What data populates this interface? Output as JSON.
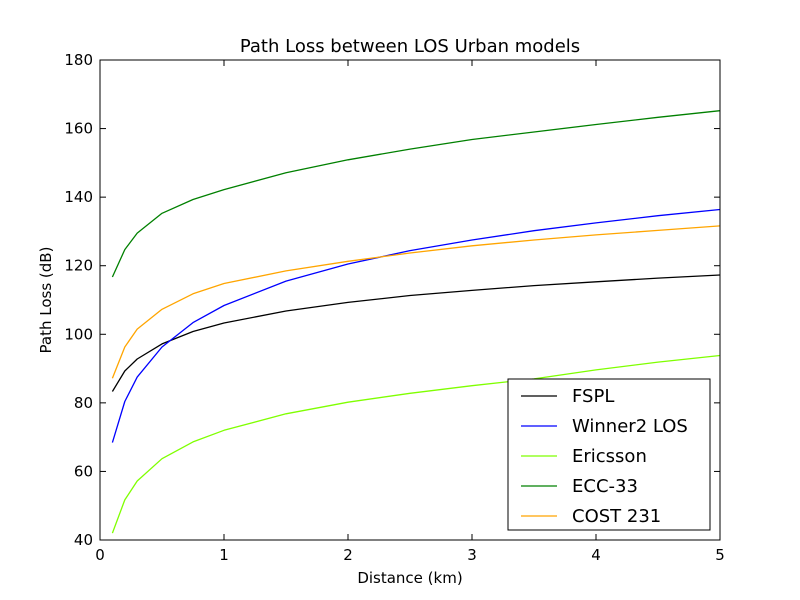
{
  "chart_data": {
    "type": "line",
    "title": "Path Loss between LOS Urban models",
    "xlabel": "Distance (km)",
    "ylabel": "Path Loss (dB)",
    "xlim": [
      0,
      5
    ],
    "ylim": [
      40,
      180
    ],
    "xticks": [
      0,
      1,
      2,
      3,
      4,
      5
    ],
    "yticks": [
      40,
      60,
      80,
      100,
      120,
      140,
      160,
      180
    ],
    "grid": false,
    "legend_position": "lower-right",
    "series": [
      {
        "name": "FSPL",
        "color": "#000000",
        "x": [
          0.1,
          0.2,
          0.3,
          0.5,
          0.75,
          1.0,
          1.5,
          2.0,
          2.5,
          3.0,
          3.5,
          4.0,
          4.5,
          5.0
        ],
        "y": [
          83.3,
          89.3,
          92.8,
          97.2,
          100.8,
          103.3,
          106.8,
          109.3,
          111.3,
          112.8,
          114.2,
          115.3,
          116.4,
          117.3
        ]
      },
      {
        "name": "Winner2 LOS",
        "color": "#0000ff",
        "x": [
          0.1,
          0.2,
          0.3,
          0.5,
          0.75,
          1.0,
          1.5,
          2.0,
          2.5,
          3.0,
          3.5,
          4.0,
          4.5,
          5.0
        ],
        "y": [
          68.4,
          80.4,
          87.5,
          96.3,
          103.4,
          108.4,
          115.5,
          120.5,
          124.4,
          127.5,
          130.2,
          132.5,
          134.6,
          136.4
        ]
      },
      {
        "name": "Ericsson",
        "color": "#7fff00",
        "x": [
          0.1,
          0.2,
          0.3,
          0.5,
          0.75,
          1.0,
          1.5,
          2.0,
          2.5,
          3.0,
          3.5,
          4.0,
          4.5,
          5.0
        ],
        "y": [
          42.0,
          51.7,
          57.2,
          63.7,
          68.6,
          72.0,
          76.8,
          80.2,
          82.8,
          85.0,
          87.0,
          89.6,
          91.9,
          93.8
        ]
      },
      {
        "name": "ECC-33",
        "color": "#008000",
        "x": [
          0.1,
          0.2,
          0.3,
          0.5,
          0.75,
          1.0,
          1.5,
          2.0,
          2.5,
          3.0,
          3.5,
          4.0,
          4.5,
          5.0
        ],
        "y": [
          116.7,
          124.7,
          129.5,
          135.3,
          139.3,
          142.2,
          147.1,
          150.9,
          154.0,
          156.8,
          159.0,
          161.2,
          163.3,
          165.2
        ]
      },
      {
        "name": "COST 231",
        "color": "#ffa500",
        "x": [
          0.1,
          0.2,
          0.3,
          0.5,
          0.75,
          1.0,
          1.5,
          2.0,
          2.5,
          3.0,
          3.5,
          4.0,
          4.5,
          5.0
        ],
        "y": [
          87.2,
          96.3,
          101.5,
          107.3,
          111.8,
          114.8,
          118.5,
          121.3,
          123.7,
          125.8,
          127.5,
          129.0,
          130.3,
          131.6
        ]
      }
    ]
  }
}
